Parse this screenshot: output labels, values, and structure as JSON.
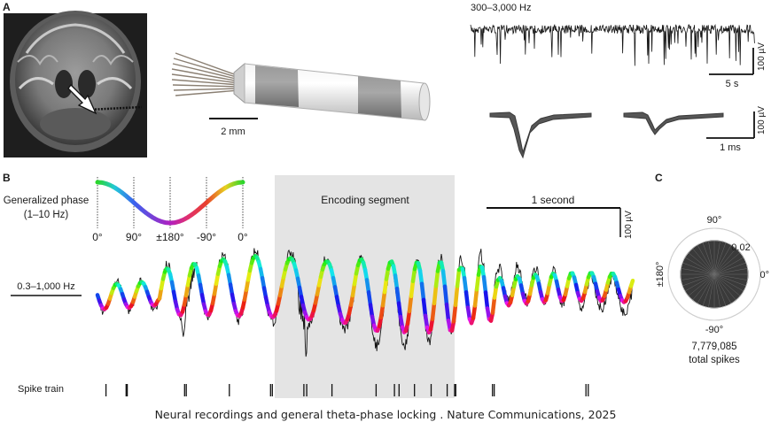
{
  "caption": "Neural recordings and general theta-phase locking . Nature Communications, 2025",
  "panel_a": {
    "label": "A",
    "electrode_scale": "2 mm",
    "highpass_band": "300–3,000 Hz",
    "trace_time_scale": "5 s",
    "trace_amp_scale": "100 µV",
    "waveform_time_scale": "1 ms",
    "waveform_amp_scale": "100 µV"
  },
  "panel_b": {
    "label": "B",
    "phase_title_line1": "Generalized phase",
    "phase_title_line2": "(1–10 Hz)",
    "phase_ticks": [
      "0°",
      "90°",
      "±180°",
      "-90°",
      "0°"
    ],
    "encoding_label": "Encoding segment",
    "time_scale": "1 second",
    "amp_scale": "100 µV",
    "band_label": "0.3–1,000 Hz",
    "spike_label": "Spike train",
    "spike_times_s": [
      0.18,
      0.53,
      0.55,
      1.55,
      1.58,
      2.33,
      3.05,
      3.08,
      3.63,
      3.68,
      4.12,
      4.89,
      5.21,
      5.29,
      5.56,
      5.85,
      6.13,
      6.26,
      6.28,
      6.92,
      6.95,
      8.55,
      8.59
    ]
  },
  "panel_c": {
    "label": "C",
    "angle_top": "90°",
    "angle_left": "±180°",
    "angle_right": "0°",
    "angle_bottom": "-90°",
    "radial_tick": "0.02",
    "total_count": "7,779,085",
    "total_label": "total spikes"
  },
  "colors": {
    "phase_0": "#2bd62b",
    "phase_90": "#3aa2ee",
    "phase_180": "#b020c0",
    "phase_m90": "#e8402c",
    "encoding_shade": "#e4e4e4",
    "polar_fill": "#3a3a3a"
  }
}
